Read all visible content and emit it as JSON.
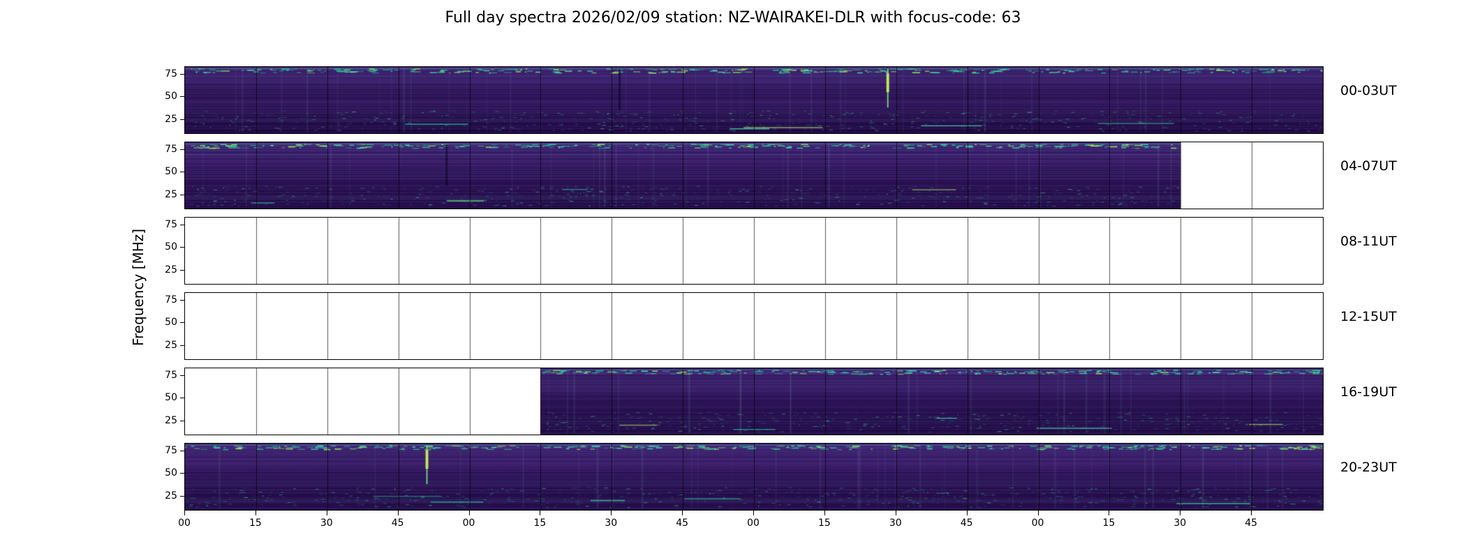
{
  "chart_data": {
    "type": "heatmap",
    "title": "Full day spectra 2026/02/09 station: NZ-WAIRAKEI-DLR with focus-code: 63",
    "ylabel": "Frequency [MHz]",
    "y_ticks": [
      "75",
      "50",
      "25"
    ],
    "y_range_mhz": [
      10,
      85
    ],
    "x_ticks": [
      "00",
      "15",
      "30",
      "45",
      "00",
      "15",
      "30",
      "45",
      "00",
      "15",
      "30",
      "45",
      "00",
      "15",
      "30",
      "45"
    ],
    "segments_per_row": 16,
    "minutes_per_segment": 15,
    "rows": [
      {
        "label": "00-03UT",
        "coverage": [
          [
            0,
            1
          ]
        ],
        "seed": 11,
        "features": [
          {
            "x": 0.381,
            "type": "dark"
          },
          {
            "x": 0.617,
            "type": "bright"
          }
        ]
      },
      {
        "label": "04-07UT",
        "coverage": [
          [
            0,
            0.875
          ]
        ],
        "seed": 23,
        "features": [
          {
            "x": 0.229,
            "type": "dark"
          }
        ]
      },
      {
        "label": "08-11UT",
        "coverage": [],
        "seed": 31,
        "features": []
      },
      {
        "label": "12-15UT",
        "coverage": [],
        "seed": 47,
        "features": []
      },
      {
        "label": "16-19UT",
        "coverage": [
          [
            0.3125,
            1
          ]
        ],
        "seed": 53,
        "features": []
      },
      {
        "label": "20-23UT",
        "coverage": [
          [
            0,
            1
          ]
        ],
        "seed": 67,
        "features": [
          {
            "x": 0.212,
            "type": "bright"
          }
        ]
      }
    ],
    "colors": {
      "base": "#371a63",
      "base_dark": "#230c48",
      "base_light": "#472a7d",
      "accent_teal": "#35d0a4",
      "accent_green": "#a2e85f",
      "empty": "#ffffff"
    }
  }
}
